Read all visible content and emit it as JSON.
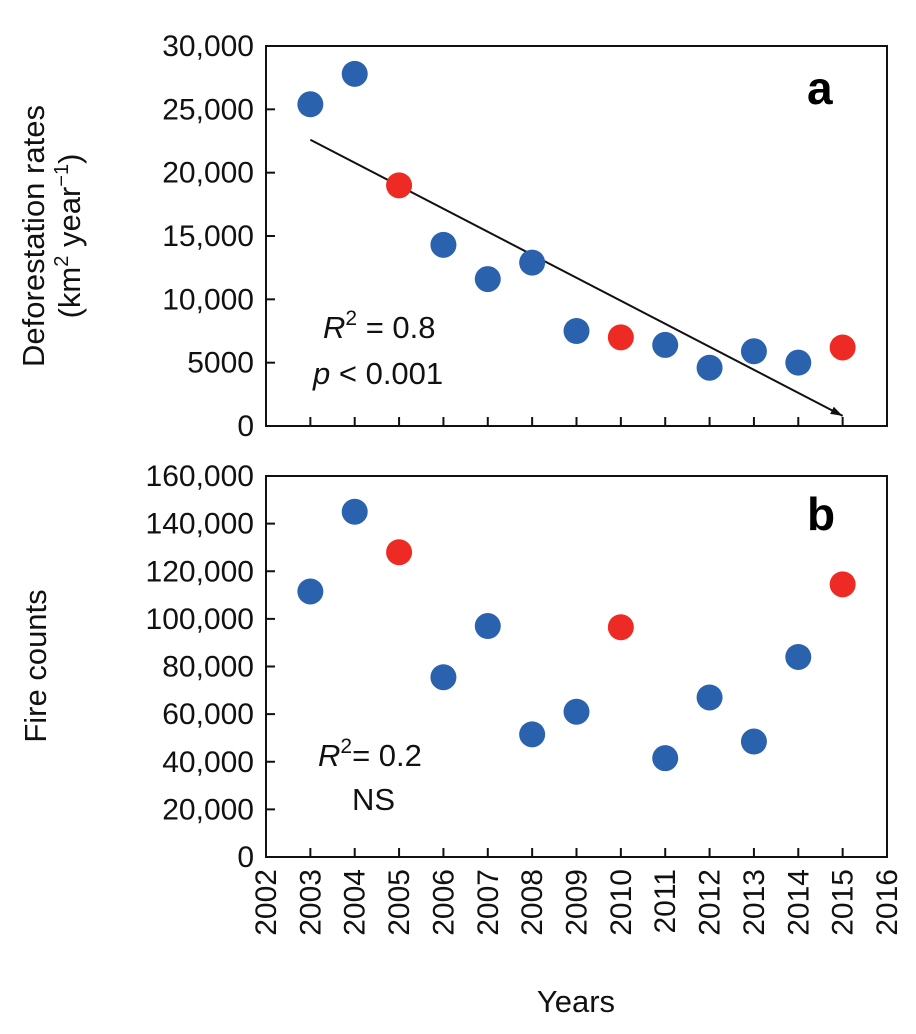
{
  "chart_data": [
    {
      "type": "scatter",
      "panel_label": "a",
      "ylabel_line1": "Deforestation rates",
      "ylabel_line2": [
        "(km",
        "2",
        "  year",
        "−1",
        ")"
      ],
      "xlim": [
        2002,
        2016
      ],
      "ylim": [
        0,
        30000
      ],
      "yticks": [
        0,
        5000,
        10000,
        15000,
        20000,
        25000,
        30000
      ],
      "ytick_labels": [
        "0",
        "5000",
        "10,000",
        "15,000",
        "20,000",
        "25,000",
        "30,000"
      ],
      "series": [
        {
          "x": [
            2003,
            2004,
            2006,
            2007,
            2008,
            2009,
            2011,
            2012,
            2013,
            2014
          ],
          "values": [
            25400,
            27800,
            14300,
            11600,
            12900,
            7500,
            6400,
            4600,
            5900,
            5000
          ],
          "color": "#2b62ad"
        },
        {
          "x": [
            2005,
            2010,
            2015
          ],
          "values": [
            19000,
            7000,
            6200
          ],
          "color": "#ee2a24"
        }
      ],
      "trendline": {
        "x": [
          2003,
          2015
        ],
        "y": [
          22600,
          800
        ]
      },
      "stats": {
        "r2_prefix": "R",
        "r2_sup": "2",
        "r2_value": " = 0.8",
        "p_prefix": "p",
        "p_value": " < 0.001"
      },
      "grid": false
    },
    {
      "type": "scatter",
      "panel_label": "b",
      "ylabel": "Fire counts",
      "xlabel": "Years",
      "xlim": [
        2002,
        2016
      ],
      "ylim": [
        0,
        160000
      ],
      "xticks": [
        2002,
        2003,
        2004,
        2005,
        2006,
        2007,
        2008,
        2009,
        2010,
        2011,
        2012,
        2013,
        2014,
        2015,
        2016
      ],
      "xtick_labels": [
        "2002",
        "2003",
        "2004",
        "2005",
        "2006",
        "2007",
        "2008",
        "2009",
        "2010",
        "2011",
        "2012",
        "2013",
        "2014",
        "2015",
        "2016"
      ],
      "yticks": [
        0,
        20000,
        40000,
        60000,
        80000,
        100000,
        120000,
        140000,
        160000
      ],
      "ytick_labels": [
        "0",
        "20,000",
        "40,000",
        "60,000",
        "80,000",
        "100,000",
        "120,000",
        "140,000",
        "160,000"
      ],
      "series": [
        {
          "x": [
            2003,
            2004,
            2006,
            2007,
            2008,
            2009,
            2011,
            2012,
            2013,
            2014
          ],
          "values": [
            111500,
            145000,
            75500,
            97000,
            51500,
            61000,
            41500,
            67000,
            48500,
            84000
          ],
          "color": "#2b62ad"
        },
        {
          "x": [
            2005,
            2010,
            2015
          ],
          "values": [
            128000,
            96500,
            114500
          ],
          "color": "#ee2a24"
        }
      ],
      "stats": {
        "r2_prefix": "R",
        "r2_sup": "2",
        "r2_value": "= 0.2",
        "ns": "NS"
      },
      "grid": false
    }
  ]
}
